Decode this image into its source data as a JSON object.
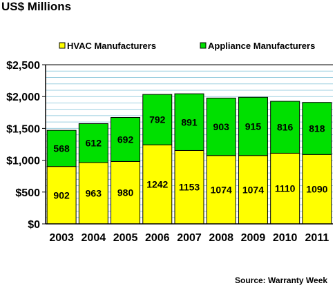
{
  "chart_data": {
    "type": "bar",
    "stacked": true,
    "title": "US$ Millions",
    "categories": [
      "2003",
      "2004",
      "2005",
      "2006",
      "2007",
      "2008",
      "2009",
      "2010",
      "2011"
    ],
    "series": [
      {
        "name": "HVAC Manufacturers",
        "color": "#FFFF00",
        "values": [
          902,
          963,
          980,
          1242,
          1153,
          1074,
          1074,
          1110,
          1090
        ]
      },
      {
        "name": "Appliance Manufacturers",
        "color": "#00E000",
        "values": [
          568,
          612,
          692,
          792,
          891,
          903,
          915,
          816,
          818
        ]
      }
    ],
    "ylim": [
      0,
      2500
    ],
    "yticks": [
      0,
      500,
      1000,
      1500,
      2000,
      2500
    ],
    "ytick_labels": [
      "$0",
      "$500",
      "$1,000",
      "$1,500",
      "$2,000",
      "$2,500"
    ],
    "grid": true,
    "minor_grid_step": 100,
    "legend_position": "top",
    "background": "#FFFFFF",
    "grid_color": "#9CCFE0",
    "source": "Source: Warranty Week"
  }
}
